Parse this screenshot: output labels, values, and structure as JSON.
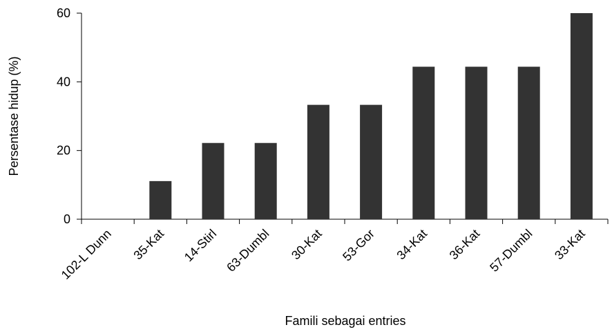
{
  "chart_data": {
    "type": "bar",
    "x_label": "Famili sebagai entries",
    "y_label": "Persentase hidup (%)",
    "categories": [
      "102-L Dunn",
      "35-Kat",
      "14-Stirl",
      "63-Dumbl",
      "30-Kat",
      "53-Gor",
      "34-Kat",
      "36-Kat",
      "57-Dumbl",
      "33-Kat"
    ],
    "values": [
      0,
      11.1,
      22.2,
      22.2,
      33.3,
      33.3,
      44.4,
      44.4,
      44.4,
      60
    ],
    "color": "#333333",
    "ylim": [
      0,
      60
    ],
    "yticks": [
      0,
      20,
      40,
      60
    ],
    "grid": false
  }
}
